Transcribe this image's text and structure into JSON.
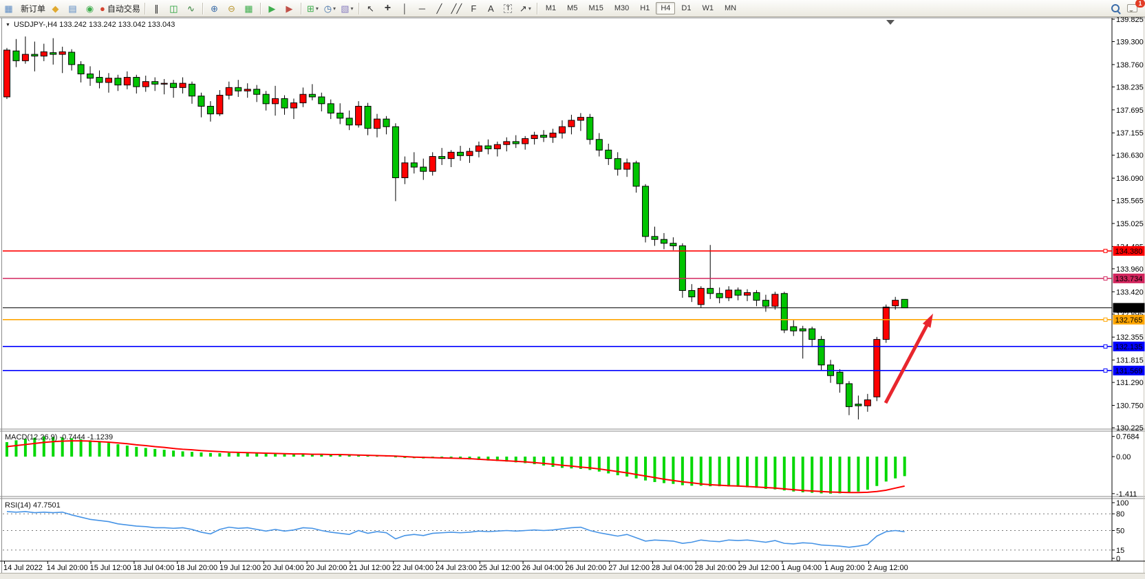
{
  "toolbar": {
    "new_order_label": "新订单",
    "autotrading_label": "自动交易",
    "notification_count": "1",
    "caret_glyph": "▾",
    "timeframes": [
      "M1",
      "M5",
      "M15",
      "M30",
      "H1",
      "H4",
      "D1",
      "W1",
      "MN"
    ],
    "active_timeframe": "H4",
    "items": [
      {
        "t": "icon",
        "name": "new-chart-icon",
        "glyph": "▦",
        "color": "#5b8ac2"
      },
      {
        "t": "button",
        "name": "new-order-button",
        "label": "新订单"
      },
      {
        "t": "icon",
        "name": "market-watch-icon",
        "glyph": "◆",
        "color": "#e0a92f"
      },
      {
        "t": "icon",
        "name": "navigator-icon",
        "glyph": "▤",
        "color": "#5b8ac2"
      },
      {
        "t": "icon",
        "name": "data-window-icon",
        "glyph": "◉",
        "color": "#3fae4e"
      },
      {
        "t": "button",
        "name": "autotrading-button",
        "glyph": "●",
        "color": "#d5422e",
        "label": "自动交易"
      },
      {
        "t": "sep"
      },
      {
        "t": "icon",
        "name": "bar-chart-icon",
        "glyph": "∥",
        "color": "#222222"
      },
      {
        "t": "icon",
        "name": "candlestick-chart-icon",
        "glyph": "◫",
        "color": "#1f9e33"
      },
      {
        "t": "icon",
        "name": "line-chart-icon",
        "glyph": "∿",
        "color": "#2d7d35"
      },
      {
        "t": "sep"
      },
      {
        "t": "icon",
        "name": "zoom-in-icon",
        "glyph": "⊕",
        "color": "#3b6ca8"
      },
      {
        "t": "icon",
        "name": "zoom-out-icon",
        "glyph": "⊖",
        "color": "#b8952f"
      },
      {
        "t": "icon",
        "name": "tile-windows-icon",
        "glyph": "▦",
        "color": "#3fae4e"
      },
      {
        "t": "sep"
      },
      {
        "t": "icon",
        "name": "auto-scroll-icon",
        "glyph": "▶",
        "color": "#3fae4e"
      },
      {
        "t": "icon",
        "name": "chart-shift-icon",
        "glyph": "▶",
        "color": "#c05048"
      },
      {
        "t": "sep"
      },
      {
        "t": "icon",
        "name": "indicators-icon",
        "glyph": "⊞",
        "color": "#3fae4e",
        "caret": true
      },
      {
        "t": "icon",
        "name": "periods-icon",
        "glyph": "◷",
        "color": "#3b6ca8",
        "caret": true
      },
      {
        "t": "icon",
        "name": "templates-icon",
        "glyph": "▧",
        "color": "#8a7fc0",
        "caret": true
      },
      {
        "t": "sep"
      },
      {
        "t": "icon",
        "name": "cursor-icon",
        "glyph": "↖",
        "color": "#333333"
      },
      {
        "t": "icon",
        "name": "crosshair-icon",
        "glyph": "+",
        "color": "#333333",
        "cls": "big"
      },
      {
        "t": "icon",
        "name": "vertical-line-icon",
        "glyph": "│",
        "color": "#333333"
      },
      {
        "t": "icon",
        "name": "horizontal-line-icon",
        "glyph": "─",
        "color": "#333333"
      },
      {
        "t": "icon",
        "name": "trendline-icon",
        "glyph": "╱",
        "color": "#333333"
      },
      {
        "t": "icon",
        "name": "equidistant-channel-icon",
        "glyph": "╱╱",
        "color": "#333333"
      },
      {
        "t": "icon",
        "name": "fibonacci-icon",
        "glyph": "F",
        "color": "#333333"
      },
      {
        "t": "icon",
        "name": "text-icon",
        "glyph": "A",
        "color": "#333333"
      },
      {
        "t": "icon",
        "name": "label-icon",
        "glyph": "T",
        "color": "#333333",
        "cls": "dashed"
      },
      {
        "t": "icon",
        "name": "arrows-tool-icon",
        "glyph": "↗",
        "color": "#333333",
        "caret": true
      },
      {
        "t": "sep"
      },
      {
        "t": "tf",
        "label": "M1"
      },
      {
        "t": "tf",
        "label": "M5"
      },
      {
        "t": "tf",
        "label": "M15"
      },
      {
        "t": "tf",
        "label": "M30"
      },
      {
        "t": "tf",
        "label": "H1"
      },
      {
        "t": "tf",
        "label": "H4"
      },
      {
        "t": "tf",
        "label": "D1"
      },
      {
        "t": "tf",
        "label": "W1"
      },
      {
        "t": "tf",
        "label": "MN"
      },
      {
        "t": "spacer"
      },
      {
        "t": "icon",
        "name": "search-icon",
        "cls": "mag"
      },
      {
        "t": "icon",
        "name": "chat-icon",
        "cls": "chat",
        "badge": true
      }
    ]
  },
  "chart_header": {
    "dropdown_glyph": "▼",
    "title": "USDJPY-,H4  133.242 133.242 133.042 133.043"
  },
  "indicators": {
    "macd_label": "MACD(12,26,9) -0.7444 -1.1239",
    "rsi_label": "RSI(14) 47.7501"
  },
  "chart_data": {
    "type": "candlestick",
    "symbol": "USDJPY-,H4",
    "timeframe": "H4",
    "colors": {
      "up": "#FF0000",
      "down": "#00C400",
      "wick": "#000000",
      "macd_hist": "#00D800",
      "macd_signal": "#FF0000",
      "rsi_line": "#4593E6",
      "arrow": "#E8262D",
      "axis": "#000000",
      "separator": "#8a8a8a"
    },
    "price_axis": {
      "ticks": [
        139.825,
        139.3,
        138.76,
        138.235,
        137.695,
        137.155,
        136.63,
        136.09,
        135.565,
        135.025,
        134.485,
        133.96,
        133.42,
        132.895,
        132.355,
        131.815,
        131.29,
        130.75,
        130.225
      ]
    },
    "hlines": [
      {
        "price": 134.38,
        "label": "134.380",
        "color": "#FF0000"
      },
      {
        "price": 133.734,
        "label": "133.734",
        "color": "#D2265E"
      },
      {
        "price": 132.765,
        "label": "132.765",
        "color": "#FFA500"
      },
      {
        "price": 132.135,
        "label": "132.135",
        "color": "#0000FF"
      },
      {
        "price": 131.569,
        "label": "131.569",
        "color": "#0000FF"
      }
    ],
    "current_price": {
      "price": 133.043,
      "label": "133.043",
      "color": "#000000"
    },
    "candles": [
      [
        138.0,
        139.15,
        137.95,
        139.1
      ],
      [
        139.08,
        139.36,
        138.7,
        138.85
      ],
      [
        138.85,
        139.42,
        138.78,
        139.0
      ],
      [
        139.0,
        139.3,
        138.6,
        138.96
      ],
      [
        138.96,
        139.25,
        138.84,
        139.06
      ],
      [
        139.04,
        139.38,
        138.76,
        139.0
      ],
      [
        139.0,
        139.18,
        138.56,
        139.06
      ],
      [
        139.05,
        139.12,
        138.62,
        138.76
      ],
      [
        138.76,
        138.84,
        138.34,
        138.54
      ],
      [
        138.54,
        138.72,
        138.26,
        138.44
      ],
      [
        138.46,
        138.62,
        138.2,
        138.34
      ],
      [
        138.34,
        138.56,
        138.1,
        138.44
      ],
      [
        138.44,
        138.52,
        138.14,
        138.28
      ],
      [
        138.28,
        138.6,
        138.18,
        138.46
      ],
      [
        138.46,
        138.52,
        138.08,
        138.24
      ],
      [
        138.24,
        138.5,
        138.12,
        138.36
      ],
      [
        138.36,
        138.46,
        138.14,
        138.3
      ],
      [
        138.3,
        138.42,
        138.06,
        138.32
      ],
      [
        138.32,
        138.4,
        137.98,
        138.22
      ],
      [
        138.22,
        138.46,
        138.08,
        138.32
      ],
      [
        138.3,
        138.36,
        137.84,
        138.02
      ],
      [
        138.02,
        138.1,
        137.52,
        137.78
      ],
      [
        137.78,
        137.9,
        137.42,
        137.6
      ],
      [
        137.6,
        138.16,
        137.55,
        138.04
      ],
      [
        138.04,
        138.36,
        137.94,
        138.22
      ],
      [
        138.22,
        138.4,
        138.0,
        138.14
      ],
      [
        138.14,
        138.32,
        137.98,
        138.18
      ],
      [
        138.18,
        138.28,
        137.88,
        138.06
      ],
      [
        138.06,
        138.14,
        137.68,
        137.84
      ],
      [
        137.84,
        138.26,
        137.56,
        137.96
      ],
      [
        137.96,
        138.04,
        137.58,
        137.74
      ],
      [
        137.74,
        137.96,
        137.48,
        137.86
      ],
      [
        137.86,
        138.22,
        137.76,
        138.06
      ],
      [
        138.06,
        138.3,
        137.92,
        138.0
      ],
      [
        138.0,
        138.1,
        137.66,
        137.84
      ],
      [
        137.84,
        137.94,
        137.48,
        137.62
      ],
      [
        137.62,
        137.85,
        137.36,
        137.5
      ],
      [
        137.5,
        137.68,
        137.22,
        137.34
      ],
      [
        137.34,
        137.9,
        137.28,
        137.78
      ],
      [
        137.78,
        137.86,
        137.1,
        137.26
      ],
      [
        137.26,
        137.6,
        137.05,
        137.48
      ],
      [
        137.48,
        137.55,
        137.12,
        137.3
      ],
      [
        137.3,
        137.38,
        135.55,
        136.1
      ],
      [
        136.1,
        136.6,
        135.95,
        136.45
      ],
      [
        136.45,
        136.7,
        136.2,
        136.35
      ],
      [
        136.35,
        136.55,
        136.05,
        136.25
      ],
      [
        136.25,
        136.7,
        136.15,
        136.6
      ],
      [
        136.6,
        136.8,
        136.4,
        136.55
      ],
      [
        136.55,
        136.75,
        136.35,
        136.7
      ],
      [
        136.7,
        136.85,
        136.5,
        136.62
      ],
      [
        136.62,
        136.8,
        136.45,
        136.72
      ],
      [
        136.72,
        136.95,
        136.58,
        136.85
      ],
      [
        136.85,
        137.0,
        136.65,
        136.78
      ],
      [
        136.78,
        136.95,
        136.6,
        136.88
      ],
      [
        136.88,
        137.05,
        136.72,
        136.95
      ],
      [
        136.95,
        137.1,
        136.8,
        136.9
      ],
      [
        136.9,
        137.08,
        136.76,
        137.02
      ],
      [
        137.02,
        137.18,
        136.88,
        137.1
      ],
      [
        137.1,
        137.22,
        136.94,
        137.05
      ],
      [
        137.05,
        137.25,
        136.92,
        137.15
      ],
      [
        137.15,
        137.45,
        137.02,
        137.3
      ],
      [
        137.3,
        137.58,
        137.12,
        137.45
      ],
      [
        137.45,
        137.62,
        137.2,
        137.52
      ],
      [
        137.52,
        137.6,
        136.88,
        137.0
      ],
      [
        137.0,
        137.15,
        136.6,
        136.75
      ],
      [
        136.75,
        136.9,
        136.4,
        136.55
      ],
      [
        136.55,
        136.7,
        136.15,
        136.3
      ],
      [
        136.3,
        136.55,
        136.12,
        136.45
      ],
      [
        136.45,
        136.5,
        135.75,
        135.9
      ],
      [
        135.9,
        135.95,
        134.58,
        134.72
      ],
      [
        134.72,
        134.95,
        134.5,
        134.65
      ],
      [
        134.65,
        134.8,
        134.42,
        134.56
      ],
      [
        134.56,
        134.7,
        134.4,
        134.5
      ],
      [
        134.5,
        134.56,
        133.28,
        133.45
      ],
      [
        133.45,
        133.6,
        133.18,
        133.3
      ],
      [
        133.12,
        133.55,
        133.05,
        133.5
      ],
      [
        133.5,
        134.52,
        133.25,
        133.38
      ],
      [
        133.38,
        133.52,
        133.15,
        133.28
      ],
      [
        133.28,
        133.55,
        133.2,
        133.46
      ],
      [
        133.46,
        133.52,
        133.22,
        133.34
      ],
      [
        133.34,
        133.48,
        133.2,
        133.4
      ],
      [
        133.4,
        133.46,
        133.08,
        133.22
      ],
      [
        133.22,
        133.35,
        132.95,
        133.08
      ],
      [
        133.08,
        133.42,
        133.0,
        133.36
      ],
      [
        133.38,
        133.42,
        132.45,
        132.52
      ],
      [
        132.6,
        132.75,
        132.38,
        132.5
      ],
      [
        132.55,
        132.62,
        131.85,
        132.5
      ],
      [
        132.55,
        132.6,
        132.12,
        132.3
      ],
      [
        132.3,
        132.38,
        131.58,
        131.7
      ],
      [
        131.7,
        131.82,
        131.28,
        131.45
      ],
      [
        131.53,
        131.6,
        131.05,
        131.26
      ],
      [
        131.26,
        131.32,
        130.52,
        130.72
      ],
      [
        130.78,
        130.98,
        130.42,
        130.74
      ],
      [
        130.74,
        131.02,
        130.6,
        130.88
      ],
      [
        130.95,
        132.36,
        130.85,
        132.3
      ],
      [
        132.3,
        133.12,
        132.22,
        133.06
      ],
      [
        133.09,
        133.3,
        133.0,
        133.22
      ],
      [
        133.242,
        133.242,
        133.042,
        133.043
      ]
    ],
    "macd": {
      "label": "MACD(12,26,9) -0.7444 -1.1239",
      "axis_labels": [
        "0.7684",
        "0.00",
        "-1.411"
      ],
      "axis_values": [
        0.7684,
        0,
        -1.411
      ],
      "histogram": [
        0.55,
        0.62,
        0.68,
        0.72,
        0.7684,
        0.75,
        0.73,
        0.7,
        0.66,
        0.62,
        0.57,
        0.52,
        0.47,
        0.42,
        0.37,
        0.33,
        0.29,
        0.26,
        0.23,
        0.2,
        0.18,
        0.16,
        0.14,
        0.13,
        0.14,
        0.15,
        0.14,
        0.12,
        0.11,
        0.1,
        0.09,
        0.08,
        0.09,
        0.1,
        0.09,
        0.08,
        0.06,
        0.05,
        0.04,
        0.03,
        0.02,
        0.02,
        -0.03,
        -0.05,
        -0.06,
        -0.07,
        -0.06,
        -0.05,
        -0.07,
        -0.09,
        -0.11,
        -0.13,
        -0.15,
        -0.17,
        -0.19,
        -0.22,
        -0.25,
        -0.29,
        -0.34,
        -0.39,
        -0.43,
        -0.45,
        -0.47,
        -0.51,
        -0.57,
        -0.64,
        -0.71,
        -0.76,
        -0.83,
        -0.91,
        -0.97,
        -1.01,
        -1.04,
        -1.09,
        -1.11,
        -1.11,
        -1.13,
        -1.13,
        -1.14,
        -1.15,
        -1.17,
        -1.19,
        -1.23,
        -1.25,
        -1.29,
        -1.33,
        -1.36,
        -1.38,
        -1.4,
        -1.411,
        -1.4,
        -1.38,
        -1.33,
        -1.26,
        -1.12,
        -0.95,
        -0.83,
        -0.7444
      ],
      "signal": [
        0.38,
        0.42,
        0.46,
        0.5,
        0.54,
        0.57,
        0.59,
        0.6,
        0.6,
        0.59,
        0.57,
        0.55,
        0.52,
        0.49,
        0.45,
        0.42,
        0.38,
        0.35,
        0.31,
        0.28,
        0.26,
        0.23,
        0.21,
        0.19,
        0.17,
        0.16,
        0.15,
        0.14,
        0.13,
        0.12,
        0.11,
        0.1,
        0.1,
        0.09,
        0.09,
        0.08,
        0.08,
        0.07,
        0.06,
        0.05,
        0.04,
        0.03,
        0.02,
        0.0,
        -0.02,
        -0.03,
        -0.04,
        -0.05,
        -0.06,
        -0.07,
        -0.08,
        -0.1,
        -0.12,
        -0.14,
        -0.16,
        -0.18,
        -0.2,
        -0.23,
        -0.26,
        -0.29,
        -0.33,
        -0.36,
        -0.4,
        -0.43,
        -0.47,
        -0.52,
        -0.57,
        -0.62,
        -0.68,
        -0.74,
        -0.8,
        -0.86,
        -0.91,
        -0.96,
        -1.0,
        -1.04,
        -1.07,
        -1.09,
        -1.11,
        -1.12,
        -1.14,
        -1.16,
        -1.18,
        -1.2,
        -1.23,
        -1.26,
        -1.29,
        -1.31,
        -1.33,
        -1.35,
        -1.36,
        -1.37,
        -1.37,
        -1.36,
        -1.33,
        -1.28,
        -1.2,
        -1.1239
      ]
    },
    "rsi": {
      "label": "RSI(14) 47.7501",
      "axis_labels": [
        "100",
        "80",
        "50",
        "15",
        "0"
      ],
      "axis_values": [
        100,
        80,
        50,
        15,
        0
      ],
      "levels": [
        80,
        50,
        15
      ],
      "values": [
        84,
        83,
        84,
        82,
        83,
        82,
        83,
        78,
        74,
        70,
        68,
        66,
        62,
        60,
        58,
        57,
        55,
        55,
        54,
        55,
        52,
        47,
        44,
        52,
        56,
        54,
        55,
        52,
        49,
        52,
        49,
        51,
        55,
        54,
        50,
        47,
        45,
        43,
        50,
        45,
        48,
        46,
        35,
        41,
        43,
        41,
        45,
        46,
        47,
        46,
        47,
        49,
        48,
        49,
        50,
        49,
        50,
        51,
        50,
        51,
        53,
        55,
        56,
        50,
        46,
        43,
        40,
        43,
        37,
        31,
        33,
        32,
        31,
        27,
        29,
        33,
        31,
        30,
        33,
        32,
        33,
        31,
        29,
        32,
        27,
        26,
        28,
        27,
        24,
        23,
        22,
        20,
        22,
        25,
        40,
        48,
        50,
        47.75
      ]
    },
    "time_labels": [
      "14 Jul 2022",
      "14 Jul 20:00",
      "15 Jul 12:00",
      "18 Jul 04:00",
      "18 Jul 20:00",
      "19 Jul 12:00",
      "20 Jul 04:00",
      "20 Jul 20:00",
      "21 Jul 12:00",
      "22 Jul 04:00",
      "24 Jul 23:00",
      "25 Jul 12:00",
      "26 Jul 04:00",
      "26 Jul 20:00",
      "27 Jul 12:00",
      "28 Jul 04:00",
      "28 Jul 20:00",
      "29 Jul 12:00",
      "1 Aug 04:00",
      "1 Aug 20:00",
      "2 Aug 12:00"
    ],
    "trend_arrow": {
      "from": [
        1287,
        586
      ],
      "to": [
        1356,
        456
      ]
    }
  }
}
